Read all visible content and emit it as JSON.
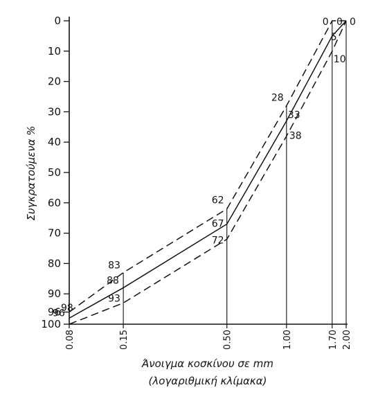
{
  "chart_data": {
    "type": "line",
    "title": "",
    "xlabel": "Άνοιγμα κοσκίνου σε mm",
    "xlabel_line2": "(λογαριθμική κλίμακα)",
    "ylabel": "Συγκρατούμενα %",
    "x_scale": "log",
    "y_inverted": true,
    "xlim": [
      0.08,
      2.0
    ],
    "ylim": [
      0,
      100
    ],
    "x_ticks": [
      0.08,
      0.15,
      0.5,
      1.0,
      1.7,
      2.0
    ],
    "x_tick_labels": [
      "0.08",
      "0.15",
      "0.50",
      "1.00",
      "1.70",
      "2.00"
    ],
    "y_ticks": [
      0,
      10,
      20,
      30,
      40,
      50,
      60,
      70,
      80,
      90,
      96,
      100
    ],
    "y_tick_labels": [
      "0",
      "10",
      "20",
      "30",
      "40",
      "50",
      "60",
      "70",
      "80",
      "90",
      "96",
      "100"
    ],
    "grid": false,
    "series": [
      {
        "style": "dashed",
        "x": [
          0.08,
          0.15,
          0.5,
          1.0,
          1.7,
          2.0
        ],
        "y": [
          96,
          83,
          62,
          28,
          0,
          0
        ],
        "labels": [
          "96",
          "83",
          "62",
          "28",
          "0",
          "0"
        ]
      },
      {
        "style": "solid",
        "x": [
          0.08,
          0.15,
          0.5,
          1.0,
          1.7,
          2.0
        ],
        "y": [
          98,
          88,
          67,
          33,
          5,
          0
        ],
        "labels": [
          "98",
          "88",
          "67",
          "33",
          "5",
          ""
        ]
      },
      {
        "style": "dashed",
        "x": [
          0.08,
          0.15,
          0.5,
          1.0,
          1.7,
          2.0
        ],
        "y": [
          100,
          93,
          72,
          38,
          10,
          0
        ],
        "labels": [
          "100",
          "93",
          "72",
          "38",
          "10",
          "0"
        ]
      }
    ]
  }
}
